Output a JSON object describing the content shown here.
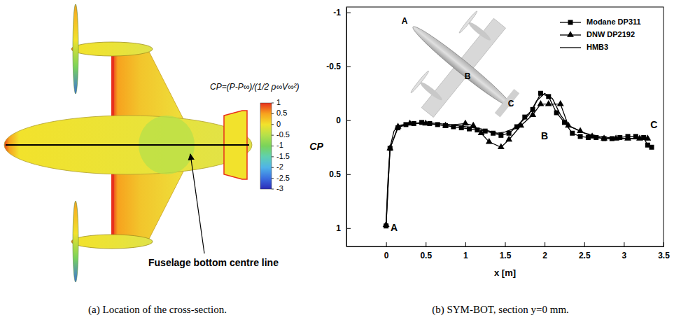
{
  "chart_data": [
    {
      "type": "surface",
      "title": "(a) Location of the cross-section.",
      "colorbar_title": "CP=(P-P∞)/(1/2 ρ∞V∞²)",
      "colorbar_range": [
        1,
        -3
      ],
      "colorbar_ticks": [
        1,
        0.5,
        0,
        -0.5,
        -1,
        -1.5,
        -2,
        -2.5,
        -3
      ],
      "annotations": [
        {
          "text": "Fuselage bottom centre line"
        }
      ]
    },
    {
      "type": "line",
      "title": "(b) SYM-BOT, section y=0 mm.",
      "xlabel": "x [m]",
      "ylabel": "CP",
      "xlim": [
        -0.5,
        3.5
      ],
      "ylim": [
        1.17,
        -1.05
      ],
      "xticks": [
        0,
        0.5,
        1,
        1.5,
        2,
        2.5,
        3,
        3.5
      ],
      "yticks": [
        1,
        0.5,
        0,
        -0.5,
        -1
      ],
      "grid": false,
      "legend": "upper right",
      "series": [
        {
          "name": "Modane DP311",
          "color": "#000000",
          "marker": "square",
          "line_style": "solid",
          "x": [
            0,
            0.05,
            0.15,
            0.25,
            0.35,
            0.45,
            0.55,
            0.65,
            0.75,
            0.85,
            0.95,
            1.05,
            1.15,
            1.25,
            1.35,
            1.45,
            1.55,
            1.65,
            1.75,
            1.85,
            1.95,
            2.05,
            2.15,
            2.25,
            2.35,
            2.45,
            2.55,
            2.65,
            2.75,
            2.85,
            2.95,
            3.05,
            3.15,
            3.25,
            3.3,
            3.35
          ],
          "values": [
            0.98,
            0.26,
            0.07,
            0.04,
            0.03,
            0.02,
            0.03,
            0.04,
            0.05,
            0.06,
            0.07,
            0.08,
            0.09,
            0.1,
            0.12,
            0.14,
            0.12,
            0.06,
            -0.03,
            -0.1,
            -0.25,
            -0.22,
            -0.07,
            0.02,
            0.12,
            0.15,
            0.16,
            0.16,
            0.17,
            0.17,
            0.16,
            0.15,
            0.15,
            0.16,
            0.23,
            0.25
          ]
        },
        {
          "name": "DNW DP2192",
          "color": "#000000",
          "marker": "triangle",
          "line_style": "solid",
          "x": [
            0,
            0.05,
            0.15,
            0.3,
            0.5,
            0.75,
            1.0,
            1.1,
            1.2,
            1.3,
            1.45,
            1.55,
            1.7,
            1.85,
            1.95,
            2.05,
            2.2,
            2.3,
            2.45,
            2.6,
            2.75,
            2.9,
            3.05,
            3.2,
            3.3
          ],
          "values": [
            0.97,
            0.26,
            0.06,
            0.03,
            0.03,
            0.05,
            0.03,
            0.05,
            0.12,
            0.2,
            0.25,
            0.18,
            0.05,
            -0.05,
            -0.15,
            -0.15,
            -0.15,
            0.05,
            0.1,
            0.15,
            0.17,
            0.17,
            0.17,
            0.17,
            0.17
          ]
        },
        {
          "name": "HMB3",
          "color": "#000000",
          "marker": "none",
          "line_style": "solid",
          "x": [
            0,
            0.02,
            0.05,
            0.1,
            0.15,
            0.3,
            0.5,
            0.8,
            1.0,
            1.2,
            1.4,
            1.5,
            1.6,
            1.7,
            1.8,
            1.9,
            2.0,
            2.1,
            2.2,
            2.3,
            2.5,
            2.7,
            2.9,
            3.1,
            3.3
          ],
          "values": [
            0.97,
            0.6,
            0.25,
            0.1,
            0.05,
            0.03,
            0.02,
            0.04,
            0.06,
            0.08,
            0.12,
            0.11,
            0.08,
            0.02,
            -0.05,
            -0.18,
            -0.25,
            -0.2,
            -0.05,
            0.05,
            0.12,
            0.15,
            0.17,
            0.17,
            0.18
          ]
        }
      ],
      "annotations": [
        {
          "text": "A",
          "x": 0.1,
          "y": 1.0
        },
        {
          "text": "B",
          "x": 2.0,
          "y": 0.15
        },
        {
          "text": "C",
          "x": 3.38,
          "y": 0.05
        }
      ],
      "inset_labels": [
        "A",
        "B",
        "C"
      ]
    }
  ]
}
